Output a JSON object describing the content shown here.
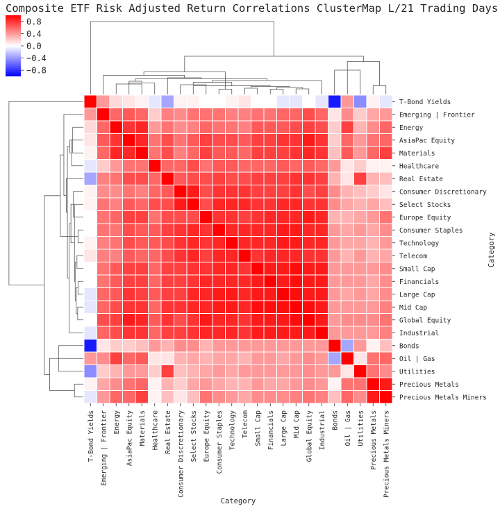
{
  "chart_data": {
    "type": "heatmap",
    "subtype": "clustermap",
    "title": "Composite ETF Risk Adjusted Return Correlations ClusterMap L/21 Trading Days",
    "xlabel": "Category",
    "ylabel": "Category",
    "labels": [
      "T-Bond Yields",
      "Emerging | Frontier",
      "Energy",
      "AsiaPac Equity",
      "Materials",
      "Healthcare",
      "Real Estate",
      "Consumer Discretionary",
      "Select Stocks",
      "Europe Equity",
      "Consumer Staples",
      "Technology",
      "Telecom",
      "Small Cap",
      "Financials",
      "Large Cap",
      "Mid Cap",
      "Global Equity",
      "Industrial",
      "Bonds",
      "Oil | Gas",
      "Utilities",
      "Precious Metals",
      "Precious Metals Miners"
    ],
    "colorbar": {
      "colormap": "bwr",
      "vmin": -1.0,
      "vmax": 1.0,
      "ticks": [
        0.8,
        0.4,
        0.0,
        -0.4,
        -0.8
      ],
      "tick_labels": [
        "0.8",
        "0.4",
        "0.0",
        "−0.4",
        "−0.8"
      ]
    },
    "dendrogram_note": "hierarchical clustering dendrograms drawn on top and left margins",
    "matrix": [
      [
        1.0,
        0.4,
        0.15,
        0.1,
        0.05,
        -0.1,
        -0.35,
        0.05,
        0.05,
        0.0,
        0.0,
        0.05,
        0.1,
        0.0,
        0.0,
        -0.1,
        -0.1,
        0.0,
        -0.1,
        -0.9,
        0.4,
        -0.45,
        0.05,
        -0.1
      ],
      [
        0.4,
        1.0,
        0.6,
        0.65,
        0.6,
        0.2,
        0.5,
        0.45,
        0.55,
        0.55,
        0.55,
        0.5,
        0.5,
        0.55,
        0.55,
        0.6,
        0.6,
        0.7,
        0.6,
        0.1,
        0.45,
        0.2,
        0.35,
        0.4
      ],
      [
        0.15,
        0.6,
        1.0,
        0.8,
        0.85,
        0.4,
        0.55,
        0.45,
        0.5,
        0.6,
        0.55,
        0.55,
        0.5,
        0.65,
        0.65,
        0.65,
        0.7,
        0.75,
        0.7,
        0.2,
        0.75,
        0.3,
        0.45,
        0.6
      ],
      [
        0.1,
        0.65,
        0.8,
        1.0,
        0.85,
        0.55,
        0.7,
        0.55,
        0.65,
        0.75,
        0.7,
        0.7,
        0.65,
        0.75,
        0.75,
        0.8,
        0.8,
        0.9,
        0.8,
        0.2,
        0.6,
        0.4,
        0.55,
        0.6
      ],
      [
        0.05,
        0.6,
        0.85,
        0.85,
        1.0,
        0.55,
        0.7,
        0.5,
        0.6,
        0.75,
        0.65,
        0.65,
        0.6,
        0.75,
        0.75,
        0.75,
        0.8,
        0.85,
        0.8,
        0.25,
        0.65,
        0.4,
        0.6,
        0.75
      ],
      [
        -0.1,
        0.2,
        0.4,
        0.55,
        0.55,
        1.0,
        0.6,
        0.6,
        0.7,
        0.55,
        0.65,
        0.65,
        0.6,
        0.6,
        0.6,
        0.65,
        0.6,
        0.65,
        0.6,
        0.4,
        0.1,
        0.2,
        0.05,
        0.05
      ],
      [
        -0.35,
        0.5,
        0.55,
        0.7,
        0.7,
        0.6,
        1.0,
        0.65,
        0.7,
        0.7,
        0.75,
        0.7,
        0.7,
        0.75,
        0.75,
        0.75,
        0.8,
        0.8,
        0.75,
        0.3,
        0.1,
        0.75,
        0.3,
        0.25
      ],
      [
        0.05,
        0.45,
        0.45,
        0.55,
        0.5,
        0.6,
        0.65,
        1.0,
        0.9,
        0.7,
        0.8,
        0.8,
        0.8,
        0.75,
        0.75,
        0.75,
        0.8,
        0.7,
        0.75,
        0.45,
        0.3,
        0.25,
        0.2,
        0.1
      ],
      [
        0.05,
        0.55,
        0.5,
        0.65,
        0.6,
        0.7,
        0.7,
        0.9,
        1.0,
        0.7,
        0.85,
        0.85,
        0.85,
        0.8,
        0.8,
        0.85,
        0.85,
        0.8,
        0.8,
        0.45,
        0.35,
        0.3,
        0.35,
        0.25
      ],
      [
        0.0,
        0.55,
        0.6,
        0.75,
        0.75,
        0.55,
        0.7,
        0.7,
        0.7,
        1.0,
        0.8,
        0.8,
        0.75,
        0.8,
        0.85,
        0.85,
        0.85,
        0.9,
        0.85,
        0.3,
        0.3,
        0.35,
        0.4,
        0.55
      ],
      [
        0.0,
        0.55,
        0.55,
        0.7,
        0.65,
        0.65,
        0.75,
        0.8,
        0.85,
        0.8,
        1.0,
        0.85,
        0.85,
        0.85,
        0.85,
        0.9,
        0.9,
        0.85,
        0.85,
        0.4,
        0.35,
        0.4,
        0.35,
        0.45
      ],
      [
        0.05,
        0.5,
        0.55,
        0.7,
        0.65,
        0.65,
        0.7,
        0.8,
        0.85,
        0.8,
        0.85,
        1.0,
        0.85,
        0.85,
        0.85,
        0.9,
        0.9,
        0.85,
        0.85,
        0.4,
        0.35,
        0.35,
        0.3,
        0.4
      ],
      [
        0.1,
        0.5,
        0.5,
        0.65,
        0.6,
        0.6,
        0.7,
        0.8,
        0.85,
        0.75,
        0.85,
        0.85,
        1.0,
        0.8,
        0.85,
        0.85,
        0.85,
        0.8,
        0.8,
        0.4,
        0.3,
        0.4,
        0.3,
        0.35
      ],
      [
        0.0,
        0.55,
        0.65,
        0.75,
        0.75,
        0.6,
        0.75,
        0.75,
        0.8,
        0.8,
        0.85,
        0.85,
        0.8,
        1.0,
        0.9,
        0.9,
        0.95,
        0.9,
        0.9,
        0.4,
        0.4,
        0.4,
        0.4,
        0.45
      ],
      [
        0.0,
        0.55,
        0.65,
        0.75,
        0.75,
        0.6,
        0.75,
        0.75,
        0.8,
        0.85,
        0.85,
        0.85,
        0.85,
        0.9,
        1.0,
        0.9,
        0.95,
        0.9,
        0.9,
        0.4,
        0.4,
        0.4,
        0.35,
        0.45
      ],
      [
        -0.1,
        0.6,
        0.65,
        0.8,
        0.75,
        0.65,
        0.75,
        0.75,
        0.85,
        0.85,
        0.9,
        0.9,
        0.85,
        0.9,
        0.9,
        1.0,
        0.95,
        0.9,
        0.9,
        0.4,
        0.35,
        0.4,
        0.35,
        0.45
      ],
      [
        -0.1,
        0.6,
        0.7,
        0.8,
        0.8,
        0.6,
        0.8,
        0.8,
        0.85,
        0.85,
        0.9,
        0.9,
        0.85,
        0.95,
        0.95,
        0.95,
        1.0,
        0.95,
        0.9,
        0.4,
        0.4,
        0.4,
        0.4,
        0.5
      ],
      [
        0.0,
        0.7,
        0.75,
        0.9,
        0.85,
        0.65,
        0.8,
        0.7,
        0.8,
        0.9,
        0.85,
        0.85,
        0.8,
        0.9,
        0.9,
        0.9,
        0.95,
        1.0,
        0.9,
        0.4,
        0.45,
        0.45,
        0.45,
        0.55
      ],
      [
        -0.1,
        0.6,
        0.7,
        0.8,
        0.8,
        0.6,
        0.75,
        0.75,
        0.8,
        0.85,
        0.85,
        0.85,
        0.8,
        0.9,
        0.9,
        0.9,
        0.9,
        0.9,
        1.0,
        0.4,
        0.4,
        0.4,
        0.4,
        0.5
      ],
      [
        -0.9,
        0.1,
        0.2,
        0.2,
        0.25,
        0.4,
        0.3,
        0.45,
        0.45,
        0.3,
        0.4,
        0.4,
        0.4,
        0.4,
        0.4,
        0.4,
        0.4,
        0.4,
        0.4,
        1.0,
        -0.35,
        0.4,
        0.05,
        0.25
      ],
      [
        0.4,
        0.45,
        0.75,
        0.6,
        0.65,
        0.1,
        0.1,
        0.3,
        0.35,
        0.3,
        0.35,
        0.35,
        0.3,
        0.4,
        0.4,
        0.35,
        0.4,
        0.45,
        0.4,
        -0.35,
        1.0,
        0.1,
        0.55,
        0.6
      ],
      [
        -0.45,
        0.2,
        0.3,
        0.4,
        0.4,
        0.2,
        0.75,
        0.25,
        0.3,
        0.35,
        0.4,
        0.35,
        0.4,
        0.4,
        0.4,
        0.4,
        0.4,
        0.45,
        0.4,
        0.4,
        0.1,
        1.0,
        0.55,
        0.45
      ],
      [
        0.05,
        0.35,
        0.45,
        0.55,
        0.6,
        0.05,
        0.3,
        0.2,
        0.35,
        0.4,
        0.35,
        0.3,
        0.3,
        0.4,
        0.35,
        0.35,
        0.4,
        0.45,
        0.4,
        0.05,
        0.55,
        0.55,
        1.0,
        0.9
      ],
      [
        -0.1,
        0.4,
        0.6,
        0.6,
        0.75,
        0.05,
        0.25,
        0.1,
        0.25,
        0.55,
        0.45,
        0.4,
        0.35,
        0.45,
        0.45,
        0.45,
        0.5,
        0.55,
        0.5,
        0.25,
        0.6,
        0.45,
        0.9,
        1.0
      ]
    ]
  }
}
